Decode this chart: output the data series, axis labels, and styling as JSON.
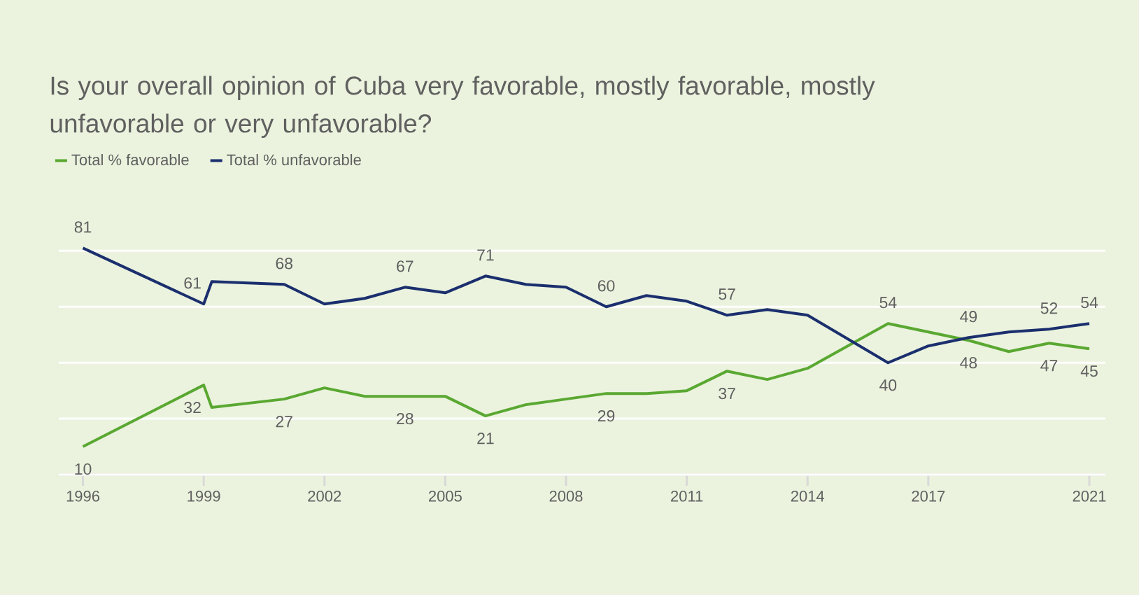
{
  "chart_data": {
    "type": "line",
    "title": "Is your overall opinion of Cuba very favorable, mostly favorable, mostly unfavorable or very unfavorable?",
    "x": [
      1996,
      1999,
      1999.2,
      2001,
      2002,
      2003,
      2004,
      2005,
      2006,
      2007,
      2008,
      2009,
      2010,
      2011,
      2012,
      2013,
      2014,
      2016,
      2017,
      2018,
      2019,
      2020,
      2021
    ],
    "series": [
      {
        "name": "Total % favorable",
        "color": "#5aa832",
        "values": [
          10,
          32,
          24,
          27,
          31,
          28,
          28,
          28,
          21,
          25,
          27,
          29,
          29,
          30,
          37,
          34,
          38,
          54,
          51,
          48,
          44,
          47,
          45
        ],
        "value_labels": [
          "10",
          "32",
          null,
          "27",
          null,
          null,
          "28",
          null,
          "21",
          null,
          null,
          "29",
          null,
          null,
          "37",
          null,
          null,
          "54",
          null,
          "48",
          null,
          "47",
          "45"
        ]
      },
      {
        "name": "Total % unfavorable",
        "color": "#1b2f6e",
        "values": [
          81,
          61,
          69,
          68,
          61,
          63,
          67,
          65,
          71,
          68,
          67,
          60,
          64,
          62,
          57,
          59,
          57,
          40,
          46,
          49,
          51,
          52,
          54
        ],
        "value_labels": [
          "81",
          "61",
          null,
          "68",
          null,
          null,
          "67",
          null,
          "71",
          null,
          null,
          "60",
          null,
          null,
          "57",
          null,
          null,
          "40",
          null,
          "49",
          null,
          "52",
          "54"
        ]
      }
    ],
    "xlim": [
      1995.4,
      2021.4
    ],
    "xticks": [
      1996,
      1999,
      2002,
      2005,
      2008,
      2011,
      2014,
      2017,
      2021
    ],
    "yticks": [
      {
        "value": 0,
        "label": null
      },
      {
        "value": 20,
        "label": null
      },
      {
        "value": 40,
        "label": null
      },
      {
        "value": 60,
        "label": null
      },
      {
        "value": 80,
        "label": null
      }
    ],
    "grid": "y",
    "legend": "top left",
    "tick_labels": "x",
    "marker": "none",
    "line_style": "solid"
  }
}
